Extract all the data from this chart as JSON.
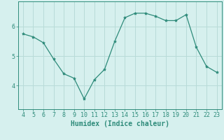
{
  "x": [
    4,
    5,
    6,
    7,
    8,
    9,
    10,
    11,
    12,
    13,
    14,
    15,
    16,
    17,
    18,
    19,
    20,
    21,
    22,
    23
  ],
  "y": [
    5.75,
    5.65,
    5.45,
    4.9,
    4.4,
    4.25,
    3.55,
    4.2,
    4.55,
    5.5,
    6.3,
    6.45,
    6.45,
    6.35,
    6.2,
    6.2,
    6.4,
    5.3,
    4.65,
    4.45
  ],
  "line_color": "#2e8b7a",
  "marker": "*",
  "marker_size": 3,
  "bg_color": "#d6f0ee",
  "grid_color": "#b8dbd8",
  "axis_color": "#2e8b7a",
  "xlabel": "Humidex (Indice chaleur)",
  "xlabel_fontsize": 7,
  "tick_fontsize": 6,
  "yticks": [
    4,
    5,
    6
  ],
  "xticks": [
    4,
    5,
    6,
    7,
    8,
    9,
    10,
    11,
    12,
    13,
    14,
    15,
    16,
    17,
    18,
    19,
    20,
    21,
    22,
    23
  ],
  "xlim": [
    3.5,
    23.5
  ],
  "ylim": [
    3.2,
    6.85
  ]
}
